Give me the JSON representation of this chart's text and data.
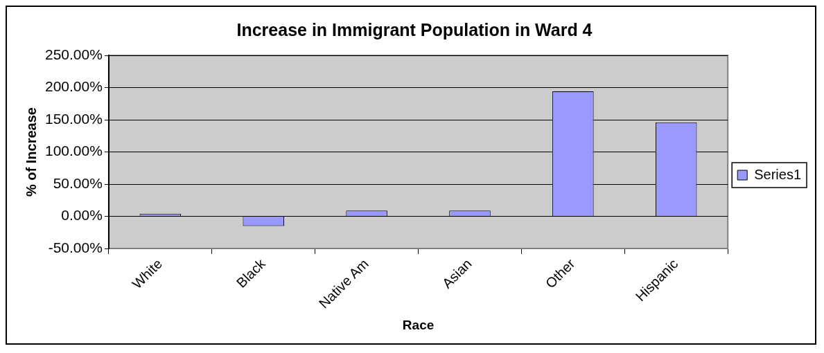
{
  "chart_data": {
    "type": "bar",
    "title": "Increase in Immigrant Population in Ward 4",
    "xlabel": "Race",
    "ylabel": "% of Increase",
    "categories": [
      "White",
      "Black",
      "Native Am",
      "Asian",
      "Other",
      "Hispanic"
    ],
    "series": [
      {
        "name": "Series1",
        "color": "#9999ff",
        "values": [
          4,
          -15,
          9,
          9,
          194,
          146
        ]
      }
    ],
    "ylim": [
      -50,
      250
    ],
    "yticks": [
      {
        "value": -50,
        "label": "-50.00%"
      },
      {
        "value": 0,
        "label": "0.00%"
      },
      {
        "value": 50,
        "label": "50.00%"
      },
      {
        "value": 100,
        "label": "100.00%"
      },
      {
        "value": 150,
        "label": "150.00%"
      },
      {
        "value": 200,
        "label": "200.00%"
      },
      {
        "value": 250,
        "label": "250.00%"
      }
    ],
    "grid": "y",
    "legend": "right"
  }
}
